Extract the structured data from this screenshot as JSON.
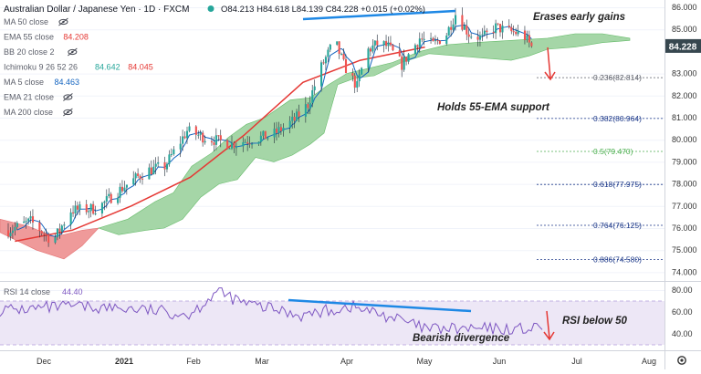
{
  "header": {
    "symbol": "Australian Dollar / Japanese Yen · 1D · FXCM",
    "ohlc": "O84.213 H84.618 L84.139 C84.228 +0.015 (+0.02%)"
  },
  "indicators": [
    {
      "label": "MA 50 close",
      "values": [],
      "colors": []
    },
    {
      "label": "EMA 55 close",
      "values": [
        "84.208"
      ],
      "colors": [
        "#e53935"
      ]
    },
    {
      "label": "BB 20 close 2",
      "values": [],
      "colors": []
    },
    {
      "label": "Ichimoku 9 26 52 26",
      "values": [
        "84.642",
        "84.045"
      ],
      "colors": [
        "#26a69a",
        "#e53935"
      ]
    },
    {
      "label": "MA 5 close",
      "values": [
        "84.463"
      ],
      "colors": [
        "#1565c0"
      ]
    },
    {
      "label": "EMA 21 close",
      "values": [],
      "colors": []
    },
    {
      "label": "MA 200 close",
      "values": [],
      "colors": []
    }
  ],
  "price_axis": {
    "ticks": [
      "86.000",
      "85.000",
      "83.000",
      "82.000",
      "81.000",
      "80.000",
      "79.000",
      "78.000",
      "77.000",
      "76.000",
      "75.000",
      "74.000"
    ],
    "tick_values": [
      86,
      85,
      83,
      82,
      81,
      80,
      79,
      78,
      77,
      76,
      75,
      74
    ],
    "current_price": "84.228",
    "current_value": 84.228
  },
  "rsi": {
    "label": "RSI 14 close",
    "value": "44.40",
    "ticks": [
      "80.00",
      "60.00",
      "40.00"
    ],
    "tick_values": [
      80,
      60,
      40
    ],
    "band_upper": 70,
    "band_lower": 30
  },
  "time_axis": [
    "Dec",
    "2021",
    "Feb",
    "Mar",
    "Apr",
    "May",
    "Jun",
    "Jul",
    "Aug"
  ],
  "fib_levels": [
    {
      "label": "0.236(82.814)",
      "value": 82.814,
      "color": "#5d606b"
    },
    {
      "label": "0.382(80.964)",
      "value": 80.964,
      "color": "#1e3a8a"
    },
    {
      "label": "0.5(79.470)",
      "value": 79.47,
      "color": "#4caf50"
    },
    {
      "label": "0.618(77.975)",
      "value": 77.975,
      "color": "#1e3a8a"
    },
    {
      "label": "0.764(76.125)",
      "value": 76.125,
      "color": "#1e3a8a"
    },
    {
      "label": "0.886(74.580)",
      "value": 74.58,
      "color": "#1e3a8a"
    }
  ],
  "annotations": {
    "erases": "Erases early gains",
    "holds": "Holds 55-EMA support",
    "rsi_below": "RSI below 50",
    "bearish": "Bearish divergence"
  },
  "colors": {
    "up_candle": "#26a69a",
    "down_candle": "#ef5350",
    "ema55": "#e53935",
    "ma5": "#1565c0",
    "trendline": "#1e88e5",
    "cloud_bull": "#a5d6a7",
    "cloud_bear": "#ef9a9a",
    "rsi_line": "#7e57c2",
    "rsi_band": "#ede7f6",
    "arrow": "#e53935",
    "price_tag": "#37474f"
  },
  "chart_data": {
    "type": "candlestick",
    "title": "Australian Dollar / Japanese Yen · 1D · FXCM",
    "ylim": [
      73.6,
      86.4
    ],
    "close_series_approx": {
      "x": [
        "2020-11-15",
        "2020-12-01",
        "2020-12-15",
        "2021-01-01",
        "2021-01-15",
        "2021-02-01",
        "2021-02-15",
        "2021-03-01",
        "2021-03-08",
        "2021-03-15",
        "2021-03-25",
        "2021-04-01",
        "2021-04-15",
        "2021-05-01",
        "2021-05-10",
        "2021-05-20",
        "2021-06-01",
        "2021-06-10",
        "2021-06-18"
      ],
      "values": [
        75.9,
        76.6,
        77.8,
        79.1,
        80.4,
        80.1,
        81.6,
        83.6,
        84.4,
        85.0,
        82.9,
        84.3,
        84.0,
        84.9,
        85.7,
        84.8,
        84.9,
        84.6,
        84.2
      ]
    },
    "ema55_approx": {
      "x": [
        "2020-11-15",
        "2020-12-15",
        "2021-01-15",
        "2021-02-15",
        "2021-03-15",
        "2021-04-15",
        "2021-05-15",
        "2021-06-18"
      ],
      "values": [
        75.4,
        75.9,
        77.0,
        78.3,
        80.2,
        82.6,
        83.6,
        84.2
      ]
    },
    "rsi_approx": {
      "x": [
        "2020-11-15",
        "2020-12-15",
        "2021-01-15",
        "2021-02-15",
        "2021-03-01",
        "2021-03-15",
        "2021-04-15",
        "2021-05-10",
        "2021-06-01",
        "2021-06-18"
      ],
      "values": [
        62,
        65,
        63,
        58,
        79,
        68,
        57,
        65,
        55,
        44.4
      ]
    }
  }
}
